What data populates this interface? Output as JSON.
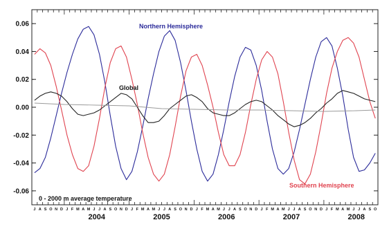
{
  "chart_data": {
    "type": "line",
    "title": "",
    "xlabel": "",
    "ylabel": "",
    "xlim": [
      2003.5,
      2008.833
    ],
    "ylim": [
      -0.07,
      0.07
    ],
    "grid": false,
    "y_ticks": [
      "0.06",
      "0.04",
      "0.02",
      "0.00",
      "-0.02",
      "-0.04",
      "-0.06"
    ],
    "y_tick_values": [
      0.06,
      0.04,
      0.02,
      0.0,
      -0.02,
      -0.04,
      -0.06
    ],
    "month_letters": [
      "J",
      "F",
      "M",
      "A",
      "M",
      "J",
      "J",
      "A",
      "S",
      "O",
      "N",
      "D"
    ],
    "years": [
      "2004",
      "2005",
      "2006",
      "2007",
      "2008"
    ],
    "year_values": [
      2004,
      2005,
      2006,
      2007,
      2008
    ],
    "annotation": "0 - 2000 m average temperature",
    "colors": {
      "northern": "#2b2b9a",
      "southern": "#e0434f",
      "global": "#222222",
      "trend": "#9a9a9a"
    },
    "series": [
      {
        "name": "Northern Hemisphere",
        "x": [
          2003.542,
          2003.625,
          2003.708,
          2003.792,
          2003.875,
          2003.958,
          2004.042,
          2004.125,
          2004.208,
          2004.292,
          2004.375,
          2004.458,
          2004.542,
          2004.625,
          2004.708,
          2004.792,
          2004.875,
          2004.958,
          2005.042,
          2005.125,
          2005.208,
          2005.292,
          2005.375,
          2005.458,
          2005.542,
          2005.625,
          2005.708,
          2005.792,
          2005.875,
          2005.958,
          2006.042,
          2006.125,
          2006.208,
          2006.292,
          2006.375,
          2006.458,
          2006.542,
          2006.625,
          2006.708,
          2006.792,
          2006.875,
          2006.958,
          2007.042,
          2007.125,
          2007.208,
          2007.292,
          2007.375,
          2007.458,
          2007.542,
          2007.625,
          2007.708,
          2007.792,
          2007.875,
          2007.958,
          2008.042,
          2008.125,
          2008.208,
          2008.292,
          2008.375,
          2008.458,
          2008.542,
          2008.625,
          2008.708,
          2008.792
        ],
        "values": [
          -0.047,
          -0.044,
          -0.036,
          -0.022,
          -0.006,
          0.01,
          0.025,
          0.038,
          0.049,
          0.056,
          0.058,
          0.052,
          0.038,
          0.018,
          -0.006,
          -0.028,
          -0.044,
          -0.052,
          -0.046,
          -0.032,
          -0.014,
          0.006,
          0.024,
          0.04,
          0.051,
          0.055,
          0.048,
          0.032,
          0.012,
          -0.01,
          -0.03,
          -0.046,
          -0.053,
          -0.048,
          -0.034,
          -0.016,
          0.004,
          0.022,
          0.036,
          0.043,
          0.041,
          0.03,
          0.012,
          -0.01,
          -0.03,
          -0.044,
          -0.048,
          -0.044,
          -0.032,
          -0.016,
          0.002,
          0.02,
          0.036,
          0.047,
          0.05,
          0.044,
          0.028,
          0.008,
          -0.016,
          -0.036,
          -0.046,
          -0.045,
          -0.04,
          -0.033
        ]
      },
      {
        "name": "Southern Hemisphere",
        "x": [
          2003.542,
          2003.625,
          2003.708,
          2003.792,
          2003.875,
          2003.958,
          2004.042,
          2004.125,
          2004.208,
          2004.292,
          2004.375,
          2004.458,
          2004.542,
          2004.625,
          2004.708,
          2004.792,
          2004.875,
          2004.958,
          2005.042,
          2005.125,
          2005.208,
          2005.292,
          2005.375,
          2005.458,
          2005.542,
          2005.625,
          2005.708,
          2005.792,
          2005.875,
          2005.958,
          2006.042,
          2006.125,
          2006.208,
          2006.292,
          2006.375,
          2006.458,
          2006.542,
          2006.625,
          2006.708,
          2006.792,
          2006.875,
          2006.958,
          2007.042,
          2007.125,
          2007.208,
          2007.292,
          2007.375,
          2007.458,
          2007.542,
          2007.625,
          2007.708,
          2007.792,
          2007.875,
          2007.958,
          2008.042,
          2008.125,
          2008.208,
          2008.292,
          2008.375,
          2008.458,
          2008.542,
          2008.625,
          2008.708,
          2008.792
        ],
        "values": [
          0.038,
          0.042,
          0.039,
          0.03,
          0.015,
          -0.002,
          -0.02,
          -0.034,
          -0.044,
          -0.046,
          -0.042,
          -0.028,
          -0.008,
          0.014,
          0.032,
          0.042,
          0.044,
          0.036,
          0.02,
          0.002,
          -0.018,
          -0.036,
          -0.048,
          -0.053,
          -0.048,
          -0.034,
          -0.014,
          0.008,
          0.026,
          0.036,
          0.038,
          0.03,
          0.016,
          0.0,
          -0.018,
          -0.034,
          -0.042,
          -0.042,
          -0.034,
          -0.018,
          0.002,
          0.02,
          0.034,
          0.04,
          0.036,
          0.024,
          0.004,
          -0.018,
          -0.038,
          -0.052,
          -0.055,
          -0.048,
          -0.032,
          -0.012,
          0.01,
          0.028,
          0.04,
          0.048,
          0.05,
          0.046,
          0.036,
          0.02,
          0.004,
          -0.008
        ]
      },
      {
        "name": "Global",
        "x": [
          2003.542,
          2003.625,
          2003.708,
          2003.792,
          2003.875,
          2003.958,
          2004.042,
          2004.125,
          2004.208,
          2004.292,
          2004.375,
          2004.458,
          2004.542,
          2004.625,
          2004.708,
          2004.792,
          2004.875,
          2004.958,
          2005.042,
          2005.125,
          2005.208,
          2005.292,
          2005.375,
          2005.458,
          2005.542,
          2005.625,
          2005.708,
          2005.792,
          2005.875,
          2005.958,
          2006.042,
          2006.125,
          2006.208,
          2006.292,
          2006.375,
          2006.458,
          2006.542,
          2006.625,
          2006.708,
          2006.792,
          2006.875,
          2006.958,
          2007.042,
          2007.125,
          2007.208,
          2007.292,
          2007.375,
          2007.458,
          2007.542,
          2007.625,
          2007.708,
          2007.792,
          2007.875,
          2007.958,
          2008.042,
          2008.125,
          2008.208,
          2008.292,
          2008.375,
          2008.458,
          2008.542,
          2008.625,
          2008.708,
          2008.792
        ],
        "values": [
          0.005,
          0.008,
          0.01,
          0.011,
          0.01,
          0.008,
          0.004,
          -0.001,
          -0.005,
          -0.006,
          -0.005,
          -0.004,
          -0.002,
          0.001,
          0.004,
          0.007,
          0.01,
          0.009,
          0.006,
          0.0,
          -0.006,
          -0.011,
          -0.011,
          -0.01,
          -0.006,
          -0.001,
          0.002,
          0.005,
          0.008,
          0.009,
          0.007,
          0.004,
          -0.001,
          -0.004,
          -0.005,
          -0.006,
          -0.006,
          -0.004,
          -0.001,
          0.002,
          0.004,
          0.005,
          0.004,
          0.001,
          -0.002,
          -0.006,
          -0.009,
          -0.012,
          -0.014,
          -0.013,
          -0.011,
          -0.008,
          -0.004,
          -0.001,
          0.003,
          0.006,
          0.01,
          0.012,
          0.011,
          0.01,
          0.008,
          0.006,
          0.005,
          0.004
        ]
      },
      {
        "name": "",
        "x": [
          2003.542,
          2004.0,
          2004.5,
          2005.0,
          2005.5,
          2006.0,
          2006.5,
          2007.0,
          2007.5,
          2008.0,
          2008.5,
          2008.792
        ],
        "values": [
          0.003,
          0.002,
          0.0015,
          0.001,
          -0.001,
          -0.0015,
          -0.002,
          -0.002,
          -0.0025,
          -0.003,
          -0.0025,
          -0.002
        ]
      }
    ]
  }
}
